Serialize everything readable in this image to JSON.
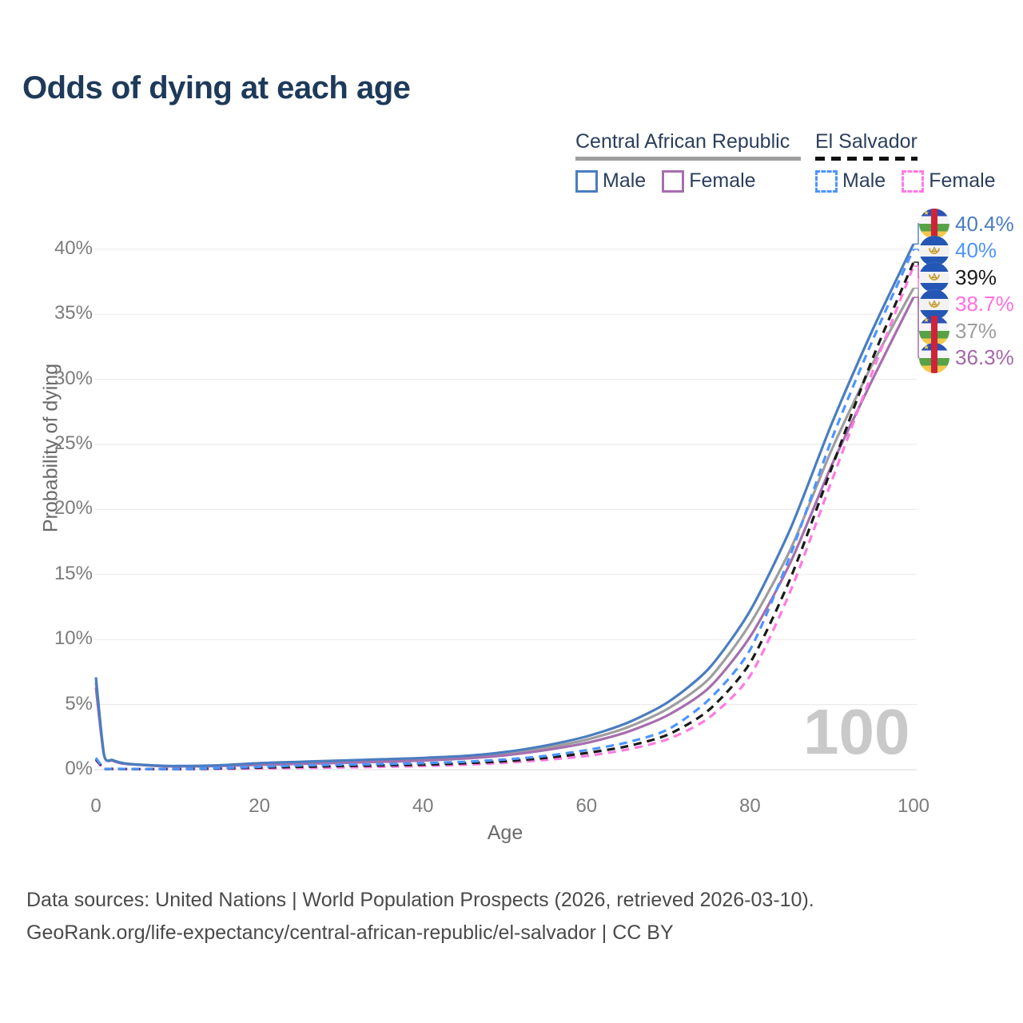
{
  "title": "Odds of dying at each age",
  "legend": {
    "groups": [
      {
        "name": "Central African Republic",
        "style": "solid",
        "underline_color": "#9e9e9e",
        "items": [
          {
            "label": "Male",
            "color": "#4a7dbf"
          },
          {
            "label": "Female",
            "color": "#a66fae"
          }
        ]
      },
      {
        "name": "El Salvador",
        "style": "dashed",
        "underline_color": "#111111",
        "items": [
          {
            "label": "Male",
            "color": "#4d94ff"
          },
          {
            "label": "Female",
            "color": "#ff7ae1"
          }
        ]
      }
    ]
  },
  "footer": {
    "line1": "Data sources: United Nations | World Population Prospects (2026, retrieved 2026-03-10).",
    "line2": "GeoRank.org/life-expectancy/central-african-republic/el-salvador | CC BY"
  },
  "chart_data": {
    "type": "line",
    "title": "Odds of dying at each age",
    "xlabel": "Age",
    "ylabel": "Probability of dying",
    "xlim": [
      0,
      100
    ],
    "ylim_pct": [
      0,
      42
    ],
    "x_ticks": [
      0,
      20,
      40,
      60,
      80,
      100
    ],
    "y_ticks": [
      "0%",
      "5%",
      "10%",
      "15%",
      "20%",
      "25%",
      "30%",
      "35%",
      "40%"
    ],
    "grid": "horizontal",
    "grid_color": "#ebebeb",
    "age_indicator": "100",
    "x": [
      0,
      1,
      2,
      3,
      4,
      5,
      8,
      10,
      15,
      20,
      25,
      30,
      35,
      40,
      45,
      50,
      55,
      60,
      65,
      70,
      75,
      80,
      85,
      90,
      95,
      100
    ],
    "series": [
      {
        "name": "Central African Republic — Both sexes",
        "country": "Central African Republic",
        "sex": "Both sexes",
        "line": "solid",
        "color": "#9e9e9e",
        "values_pct": [
          6.7,
          1.12,
          0.72,
          0.52,
          0.44,
          0.39,
          0.28,
          0.26,
          0.3,
          0.43,
          0.52,
          0.61,
          0.7,
          0.8,
          0.95,
          1.22,
          1.67,
          2.3,
          3.25,
          4.7,
          7.0,
          11.2,
          17.0,
          24.6,
          31.2,
          37.0
        ]
      },
      {
        "name": "Central African Republic — Female",
        "country": "Central African Republic",
        "sex": "Female",
        "line": "solid",
        "color": "#a66fae",
        "values_pct": [
          6.3,
          1.1,
          0.7,
          0.5,
          0.42,
          0.38,
          0.27,
          0.25,
          0.28,
          0.37,
          0.44,
          0.52,
          0.6,
          0.7,
          0.85,
          1.1,
          1.5,
          2.05,
          2.9,
          4.2,
          6.3,
          10.2,
          16.0,
          23.4,
          30.0,
          36.3
        ]
      },
      {
        "name": "Central African Republic — Male",
        "country": "Central African Republic",
        "sex": "Male",
        "line": "solid",
        "color": "#4a7dbf",
        "values_pct": [
          7.1,
          1.15,
          0.75,
          0.55,
          0.45,
          0.4,
          0.3,
          0.28,
          0.33,
          0.5,
          0.6,
          0.7,
          0.8,
          0.9,
          1.05,
          1.35,
          1.85,
          2.55,
          3.6,
          5.2,
          7.8,
          12.2,
          18.6,
          26.6,
          33.8,
          40.4
        ]
      },
      {
        "name": "El Salvador — Female",
        "country": "El Salvador",
        "sex": "Female",
        "line": "dashed",
        "color": "#ff7ae1",
        "values_pct": [
          0.72,
          0.08,
          0.05,
          0.04,
          0.04,
          0.04,
          0.04,
          0.04,
          0.06,
          0.09,
          0.13,
          0.17,
          0.22,
          0.28,
          0.38,
          0.53,
          0.75,
          1.05,
          1.55,
          2.35,
          4.0,
          7.2,
          13.8,
          22.2,
          30.6,
          38.7
        ]
      },
      {
        "name": "El Salvador — Both sexes",
        "country": "El Salvador",
        "sex": "Both sexes",
        "line": "dashed",
        "color": "#1a1a1a",
        "values_pct": [
          0.81,
          0.09,
          0.06,
          0.05,
          0.045,
          0.045,
          0.045,
          0.045,
          0.09,
          0.16,
          0.22,
          0.28,
          0.33,
          0.39,
          0.49,
          0.65,
          0.9,
          1.28,
          1.8,
          2.7,
          4.6,
          8.2,
          14.8,
          23.2,
          31.6,
          39.0
        ]
      },
      {
        "name": "El Salvador — Male",
        "country": "El Salvador",
        "sex": "Male",
        "line": "dashed",
        "color": "#4d94ff",
        "values_pct": [
          0.9,
          0.1,
          0.07,
          0.06,
          0.05,
          0.05,
          0.05,
          0.05,
          0.12,
          0.22,
          0.32,
          0.38,
          0.43,
          0.5,
          0.6,
          0.78,
          1.05,
          1.5,
          2.1,
          3.1,
          5.4,
          9.2,
          16.6,
          25.4,
          33.0,
          40.0
        ]
      }
    ],
    "end_labels": [
      {
        "flag": "central-african-republic",
        "text": "40.4%",
        "value_pct": 40.4,
        "color": "#4a7dbf"
      },
      {
        "flag": "el-salvador",
        "text": "40%",
        "value_pct": 40.0,
        "color": "#4d94ff"
      },
      {
        "flag": "el-salvador",
        "text": "39%",
        "value_pct": 39.0,
        "color": "#1a1a1a"
      },
      {
        "flag": "el-salvador",
        "text": "38.7%",
        "value_pct": 38.7,
        "color": "#ff6ee0"
      },
      {
        "flag": "central-african-republic",
        "text": "37%",
        "value_pct": 37.0,
        "color": "#9e9e9e"
      },
      {
        "flag": "central-african-republic",
        "text": "36.3%",
        "value_pct": 36.3,
        "color": "#a467a9"
      }
    ]
  }
}
